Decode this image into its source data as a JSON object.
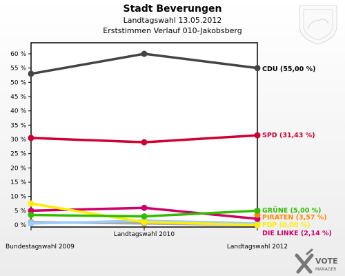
{
  "header": {
    "title": "Stadt Beverungen",
    "subtitle1": "Landtagswahl 13.05.2012",
    "subtitle2": "Erststimmen Verlauf 010-Jakobsberg"
  },
  "branding": {
    "logo_text": "VOTE",
    "logo_sub": "MANAGER"
  },
  "chart_data": {
    "type": "line",
    "x": [
      "Bundestagswahl 2009",
      "Landtagswahl 2010",
      "Landtagswahl 2012"
    ],
    "ylim": [
      0,
      63
    ],
    "yticks": [
      "0 %",
      "5 %",
      "10 %",
      "15 %",
      "20 %",
      "25 %",
      "30 %",
      "35 %",
      "40 %",
      "45 %",
      "50 %",
      "55 %",
      "60 %"
    ],
    "ytick_values": [
      0,
      5,
      10,
      15,
      20,
      25,
      30,
      35,
      40,
      45,
      50,
      55,
      60
    ],
    "grid": false,
    "series": [
      {
        "name": "CDU",
        "label": "CDU (55,00 %)",
        "color": "#444444",
        "label_color": "#000000",
        "values": [
          53.0,
          60.0,
          55.0
        ]
      },
      {
        "name": "SPD",
        "label": "SPD (31,43 %)",
        "color": "#cc0033",
        "label_color": "#cc0033",
        "values": [
          30.5,
          29.0,
          31.43
        ]
      },
      {
        "name": "GRÜNE",
        "label": "GRÜNE (5,00 %)",
        "color": "#33bb00",
        "label_color": "#33bb00",
        "values": [
          3.5,
          3.0,
          5.0
        ]
      },
      {
        "name": "PIRATEN",
        "label": "PIRATEN (3,57 %)",
        "color": "#ff8800",
        "label_color": "#ff8800",
        "values": [
          null,
          null,
          3.57
        ]
      },
      {
        "name": "FDP",
        "label": "FDP (0,00 %)",
        "color": "#ffee00",
        "label_color": "#ffee00",
        "values": [
          7.5,
          1.0,
          0.0
        ]
      },
      {
        "name": "DIE LINKE",
        "label": "DIE LINKE (2,14 %)",
        "color": "#cc0066",
        "label_color": "#cc0066",
        "values": [
          5.0,
          6.0,
          2.14
        ]
      },
      {
        "name": "Sonstige",
        "label": "",
        "color": "#99ccff",
        "label_color": "#99ccff",
        "values": [
          0.5,
          1.5,
          0.5
        ]
      },
      {
        "name": "Andere",
        "label": "",
        "color": "#aaaaaa",
        "label_color": "#aaaaaa",
        "values": [
          1.0,
          0.5,
          0.0
        ]
      }
    ]
  }
}
